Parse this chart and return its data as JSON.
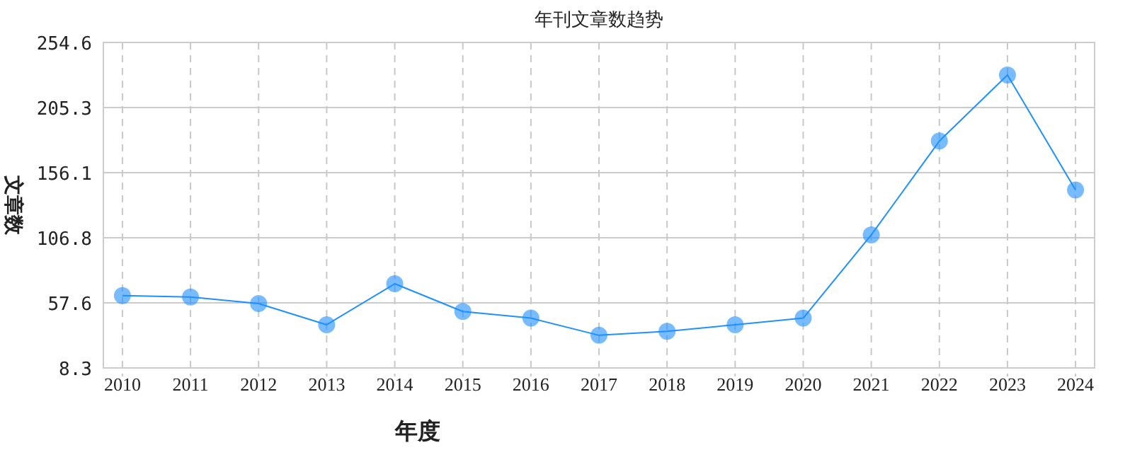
{
  "chart_data": {
    "type": "line",
    "title": "年刊文章数趋势",
    "xlabel": "年度",
    "ylabel": "文章数",
    "categories": [
      "2010",
      "2011",
      "2012",
      "2013",
      "2014",
      "2015",
      "2016",
      "2017",
      "2018",
      "2019",
      "2020",
      "2021",
      "2022",
      "2023",
      "2024"
    ],
    "series": [
      {
        "color": "#1e90ff",
        "values": [
          63,
          62,
          57,
          41,
          72,
          51,
          46,
          33,
          36,
          41,
          46,
          109,
          180,
          230,
          143
        ]
      }
    ],
    "ylim": [
      8.3,
      254.6
    ],
    "yticks": [
      8.3,
      57.6,
      106.8,
      156.1,
      205.3,
      254.6
    ],
    "grid": true,
    "marker": "circle",
    "line_style": "solid"
  }
}
